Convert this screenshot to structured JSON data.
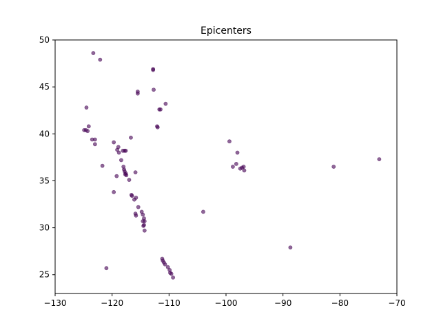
{
  "chart_data": {
    "type": "scatter",
    "title": "Epicenters",
    "xlabel": "",
    "ylabel": "",
    "xlim": [
      -130,
      -70
    ],
    "ylim": [
      23,
      50
    ],
    "x_ticks": [
      -130,
      -120,
      -110,
      -100,
      -90,
      -80,
      -70
    ],
    "y_ticks": [
      25,
      30,
      35,
      40,
      45,
      50
    ],
    "x_tick_labels": [
      "−130",
      "−120",
      "−110",
      "−100",
      "−90",
      "−80",
      "−70"
    ],
    "y_tick_labels": [
      "25",
      "30",
      "35",
      "40",
      "45",
      "50"
    ],
    "grid": false,
    "legend": "none",
    "marker_color": "#440154",
    "marker_opacity": 0.6,
    "points": [
      {
        "x": -123.3,
        "y": 48.6
      },
      {
        "x": -122.1,
        "y": 47.9
      },
      {
        "x": -112.8,
        "y": 46.9
      },
      {
        "x": -112.8,
        "y": 46.8
      },
      {
        "x": -115.5,
        "y": 44.5
      },
      {
        "x": -115.5,
        "y": 44.3
      },
      {
        "x": -112.7,
        "y": 44.7
      },
      {
        "x": -110.6,
        "y": 43.2
      },
      {
        "x": -124.5,
        "y": 42.8
      },
      {
        "x": -111.7,
        "y": 42.6
      },
      {
        "x": -111.5,
        "y": 42.6
      },
      {
        "x": -112.1,
        "y": 40.8
      },
      {
        "x": -112.0,
        "y": 40.7
      },
      {
        "x": -124.9,
        "y": 40.4
      },
      {
        "x": -124.6,
        "y": 40.4
      },
      {
        "x": -124.3,
        "y": 40.3
      },
      {
        "x": -124.1,
        "y": 40.8
      },
      {
        "x": -116.7,
        "y": 39.6
      },
      {
        "x": -123.5,
        "y": 39.4
      },
      {
        "x": -123.0,
        "y": 39.4
      },
      {
        "x": -123.0,
        "y": 38.9
      },
      {
        "x": -119.7,
        "y": 39.1
      },
      {
        "x": -118.9,
        "y": 38.6
      },
      {
        "x": -119.1,
        "y": 38.3
      },
      {
        "x": -118.8,
        "y": 38.0
      },
      {
        "x": -118.1,
        "y": 38.2
      },
      {
        "x": -117.8,
        "y": 38.2
      },
      {
        "x": -117.6,
        "y": 38.2
      },
      {
        "x": -118.4,
        "y": 37.2
      },
      {
        "x": -121.7,
        "y": 36.6
      },
      {
        "x": -118.0,
        "y": 36.5
      },
      {
        "x": -117.9,
        "y": 36.2
      },
      {
        "x": -117.8,
        "y": 36.0
      },
      {
        "x": -117.6,
        "y": 35.8
      },
      {
        "x": -117.5,
        "y": 35.6
      },
      {
        "x": -117.7,
        "y": 35.7
      },
      {
        "x": -119.2,
        "y": 35.5
      },
      {
        "x": -115.9,
        "y": 35.9
      },
      {
        "x": -117.0,
        "y": 35.1
      },
      {
        "x": -119.7,
        "y": 33.8
      },
      {
        "x": -116.6,
        "y": 33.5
      },
      {
        "x": -116.5,
        "y": 33.4
      },
      {
        "x": -115.8,
        "y": 33.2
      },
      {
        "x": -116.1,
        "y": 33.0
      },
      {
        "x": -115.4,
        "y": 32.2
      },
      {
        "x": -114.8,
        "y": 31.7
      },
      {
        "x": -114.6,
        "y": 31.4
      },
      {
        "x": -115.9,
        "y": 31.5
      },
      {
        "x": -115.8,
        "y": 31.3
      },
      {
        "x": -114.4,
        "y": 31.0
      },
      {
        "x": -114.6,
        "y": 30.7
      },
      {
        "x": -114.3,
        "y": 30.7
      },
      {
        "x": -114.4,
        "y": 30.3
      },
      {
        "x": -114.5,
        "y": 30.2
      },
      {
        "x": -114.3,
        "y": 29.7
      },
      {
        "x": -121.0,
        "y": 25.7
      },
      {
        "x": -111.2,
        "y": 26.7
      },
      {
        "x": -111.1,
        "y": 26.5
      },
      {
        "x": -110.9,
        "y": 26.3
      },
      {
        "x": -110.7,
        "y": 26.1
      },
      {
        "x": -110.2,
        "y": 25.8
      },
      {
        "x": -109.9,
        "y": 25.5
      },
      {
        "x": -109.8,
        "y": 25.2
      },
      {
        "x": -109.6,
        "y": 25.1
      },
      {
        "x": -109.3,
        "y": 24.7
      },
      {
        "x": -104.0,
        "y": 31.7
      },
      {
        "x": -99.4,
        "y": 39.2
      },
      {
        "x": -98.0,
        "y": 38.0
      },
      {
        "x": -98.8,
        "y": 36.5
      },
      {
        "x": -98.2,
        "y": 36.8
      },
      {
        "x": -97.5,
        "y": 36.3
      },
      {
        "x": -97.2,
        "y": 36.4
      },
      {
        "x": -96.9,
        "y": 36.5
      },
      {
        "x": -96.8,
        "y": 36.1
      },
      {
        "x": -88.7,
        "y": 27.9
      },
      {
        "x": -81.1,
        "y": 36.5
      },
      {
        "x": -73.1,
        "y": 37.3
      }
    ]
  }
}
